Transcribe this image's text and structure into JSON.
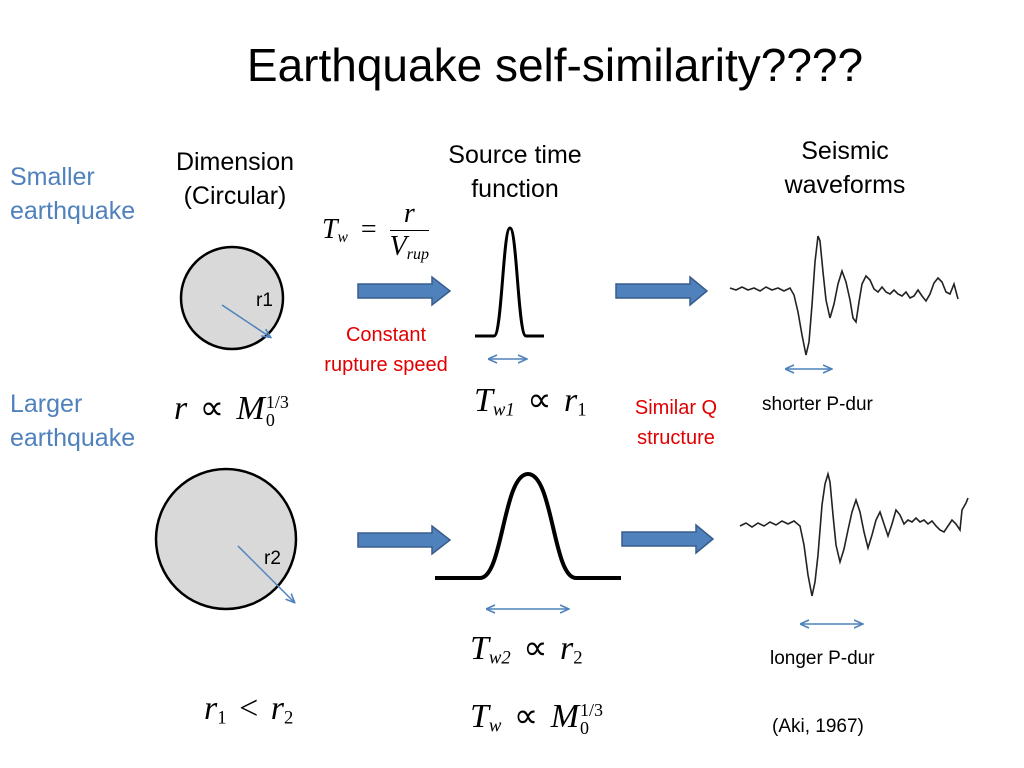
{
  "title": "Earthquake self-similarity????",
  "headers": {
    "dimension": [
      "Dimension",
      "(Circular)"
    ],
    "source_time": [
      "Source time",
      "function"
    ],
    "waveforms": [
      "Seismic",
      "waveforms"
    ]
  },
  "rows": {
    "smaller": [
      "Smaller",
      "earthquake"
    ],
    "larger": [
      "Larger",
      "earthquake"
    ]
  },
  "circle_labels": {
    "small": "r1",
    "large": "r2"
  },
  "notes": {
    "constant_rupture": [
      "Constant",
      "rupture speed"
    ],
    "similar_q": [
      "Similar Q",
      "structure"
    ],
    "shorter": "shorter P-dur",
    "longer": "longer P-dur",
    "citation": "(Aki, 1967)"
  },
  "equations": {
    "tw_definition": {
      "lhs": "T",
      "lhs_sub": "w",
      "op": "=",
      "num": "r",
      "den": "V",
      "den_sub": "rup"
    },
    "r_prop_m0": {
      "lhs": "r",
      "op": "∝",
      "rhs": "M",
      "rhs_sub": "0",
      "rhs_sup": "1/3"
    },
    "tw1": {
      "lhs": "T",
      "lhs_sub": "w1",
      "op": "∝",
      "rhs": "r",
      "rhs_sub": "1"
    },
    "tw2": {
      "lhs": "T",
      "lhs_sub": "w2",
      "op": "∝",
      "rhs": "r",
      "rhs_sub": "2"
    },
    "r1_lt_r2": {
      "lhs": "r",
      "lhs_sub": "1",
      "op": "<",
      "rhs": "r",
      "rhs_sub": "2"
    },
    "tw_prop_m0": {
      "lhs": "T",
      "lhs_sub": "w",
      "op": "∝",
      "rhs": "M",
      "rhs_sub": "0",
      "rhs_sup": "1/3"
    }
  },
  "colors": {
    "blue_label": "#4f81bd",
    "arrow_fill": "#4f81bd",
    "arrow_stroke": "#385d8a",
    "red_note": "#e00000",
    "circle_fill": "#d9d9d9"
  }
}
